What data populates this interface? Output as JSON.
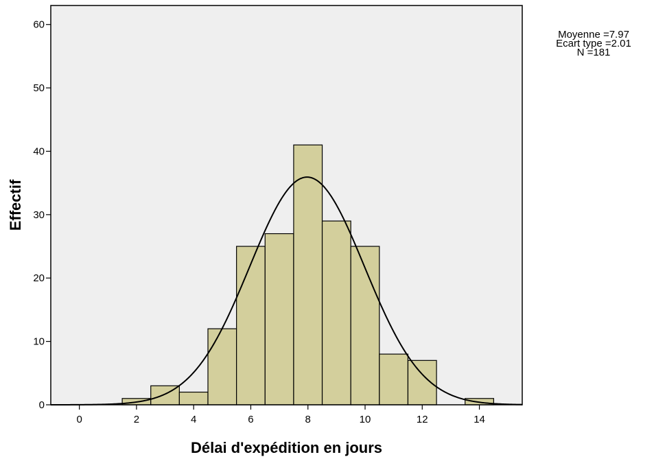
{
  "chart_data": {
    "type": "bar",
    "bins": [
      {
        "center": 2,
        "count": 1
      },
      {
        "center": 3,
        "count": 3
      },
      {
        "center": 4,
        "count": 2
      },
      {
        "center": 5,
        "count": 12
      },
      {
        "center": 6,
        "count": 25
      },
      {
        "center": 7,
        "count": 27
      },
      {
        "center": 8,
        "count": 41
      },
      {
        "center": 9,
        "count": 29
      },
      {
        "center": 10,
        "count": 25
      },
      {
        "center": 11,
        "count": 8
      },
      {
        "center": 12,
        "count": 7
      },
      {
        "center": 14,
        "count": 1
      }
    ],
    "bin_width": 1,
    "normal_curve": {
      "mean": 7.97,
      "sd": 2.01,
      "n": 181
    },
    "xlabel": "Délai d'expédition en jours",
    "ylabel": "Effectif",
    "xlim": [
      -1,
      15.5
    ],
    "ylim": [
      0,
      63
    ],
    "x_ticks": [
      0,
      2,
      4,
      6,
      8,
      10,
      12,
      14
    ],
    "y_ticks": [
      0,
      10,
      20,
      30,
      40,
      50,
      60
    ],
    "bar_color": "#d3cf9c",
    "plot_background": "#efefef",
    "grid": false
  },
  "stats": {
    "mean_text": "Moyenne =7.97",
    "sd_text": "Ecart type =2.01",
    "n_text": "N =181"
  }
}
